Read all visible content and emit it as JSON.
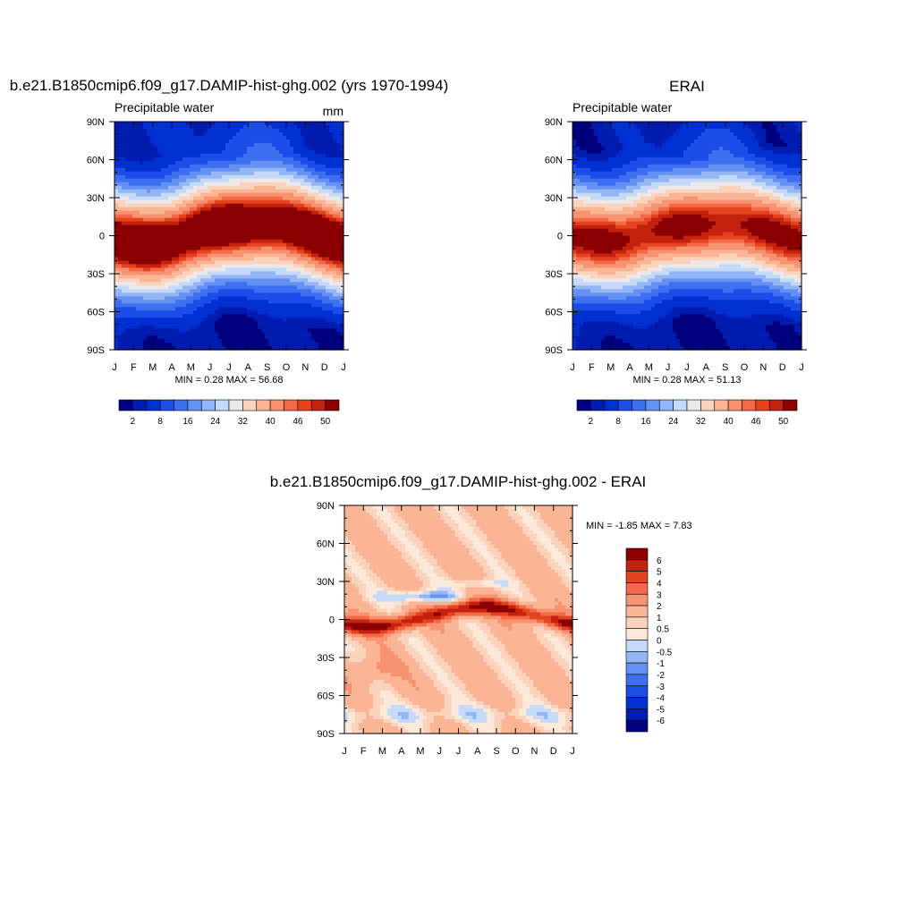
{
  "chart_data": [
    {
      "type": "heatmap",
      "title": "b.e21.B1850cmip6.f09_g17.DAMIP-hist-ghg.002 (yrs 1970-1994)",
      "subtitle": "Precipitable water",
      "units": "mm",
      "x_ticks": [
        "J",
        "F",
        "M",
        "A",
        "M",
        "J",
        "J",
        "A",
        "S",
        "O",
        "N",
        "D",
        "J"
      ],
      "y_ticks": [
        "90N",
        "60N",
        "30N",
        "0",
        "30S",
        "60S",
        "90S"
      ],
      "xlim": [
        0,
        12
      ],
      "ylim": [
        -90,
        90
      ],
      "stats": "MIN =   0.28 MAX =   56.68",
      "field": {
        "peak": 56,
        "itcz_lat_amp": 9,
        "itcz_lat_offset": 2,
        "width": 30,
        "pole_north": 4,
        "pole_south": 2
      },
      "colorbar_levels": [
        2,
        4,
        8,
        12,
        16,
        20,
        24,
        28,
        32,
        36,
        40,
        44,
        46,
        48,
        50
      ],
      "colorbar_labels": [
        "2",
        "8",
        "16",
        "24",
        "32",
        "40",
        "46",
        "50"
      ],
      "colors": [
        "#00007f",
        "#001db0",
        "#0030d2",
        "#1c4de8",
        "#3d6ff0",
        "#6592f2",
        "#95b6f5",
        "#c4daf8",
        "#ece8e8",
        "#fbd3bd",
        "#fab595",
        "#f79370",
        "#f26a47",
        "#e44320",
        "#c5220e",
        "#8b0000"
      ]
    },
    {
      "type": "heatmap",
      "title": "ERAI",
      "subtitle": "Precipitable water",
      "x_ticks": [
        "J",
        "F",
        "M",
        "A",
        "M",
        "J",
        "J",
        "A",
        "S",
        "O",
        "N",
        "D",
        "J"
      ],
      "y_ticks": [
        "90N",
        "60N",
        "30N",
        "0",
        "30S",
        "60S",
        "90S"
      ],
      "xlim": [
        0,
        12
      ],
      "ylim": [
        -90,
        90
      ],
      "stats": "MIN =   0.28 MAX =   51.13",
      "field": {
        "peak": 51,
        "itcz_lat_amp": 7,
        "itcz_lat_offset": 3,
        "width": 30,
        "pole_north": 3,
        "pole_south": 2
      },
      "colorbar_levels": [
        2,
        4,
        8,
        12,
        16,
        20,
        24,
        28,
        32,
        36,
        40,
        44,
        46,
        48,
        50
      ],
      "colorbar_labels": [
        "2",
        "8",
        "16",
        "24",
        "32",
        "40",
        "46",
        "50"
      ],
      "colors": [
        "#00007f",
        "#001db0",
        "#0030d2",
        "#1c4de8",
        "#3d6ff0",
        "#6592f2",
        "#95b6f5",
        "#c4daf8",
        "#ece8e8",
        "#fbd3bd",
        "#fab595",
        "#f79370",
        "#f26a47",
        "#e44320",
        "#c5220e",
        "#8b0000"
      ]
    },
    {
      "type": "heatmap",
      "title": "b.e21.B1850cmip6.f09_g17.DAMIP-hist-ghg.002 - ERAI",
      "x_ticks": [
        "J",
        "F",
        "M",
        "A",
        "M",
        "J",
        "J",
        "A",
        "S",
        "O",
        "N",
        "D",
        "J"
      ],
      "y_ticks": [
        "90N",
        "60N",
        "30N",
        "0",
        "30S",
        "60S",
        "90S"
      ],
      "xlim": [
        0,
        12
      ],
      "ylim": [
        -90,
        90
      ],
      "stats": "MIN =  -1.85 MAX =    7.83",
      "colorbar_levels": [
        -6,
        -5,
        -4,
        -3,
        -2,
        -1,
        -0.5,
        0,
        0.5,
        1,
        2,
        3,
        4,
        5,
        6
      ],
      "colorbar_labels": [
        "6",
        "5",
        "4",
        "3",
        "2",
        "1",
        "0.5",
        "0",
        "-0.5",
        "-1",
        "-2",
        "-3",
        "-4",
        "-5",
        "-6"
      ],
      "colors": [
        "#00007f",
        "#001db0",
        "#0030d2",
        "#1c4de8",
        "#3d6ff0",
        "#6592f2",
        "#95b6f5",
        "#c4daf8",
        "#fbe8d8",
        "#fbd3bd",
        "#fab595",
        "#f79370",
        "#f26a47",
        "#e44320",
        "#c5220e",
        "#8b0000"
      ]
    }
  ]
}
